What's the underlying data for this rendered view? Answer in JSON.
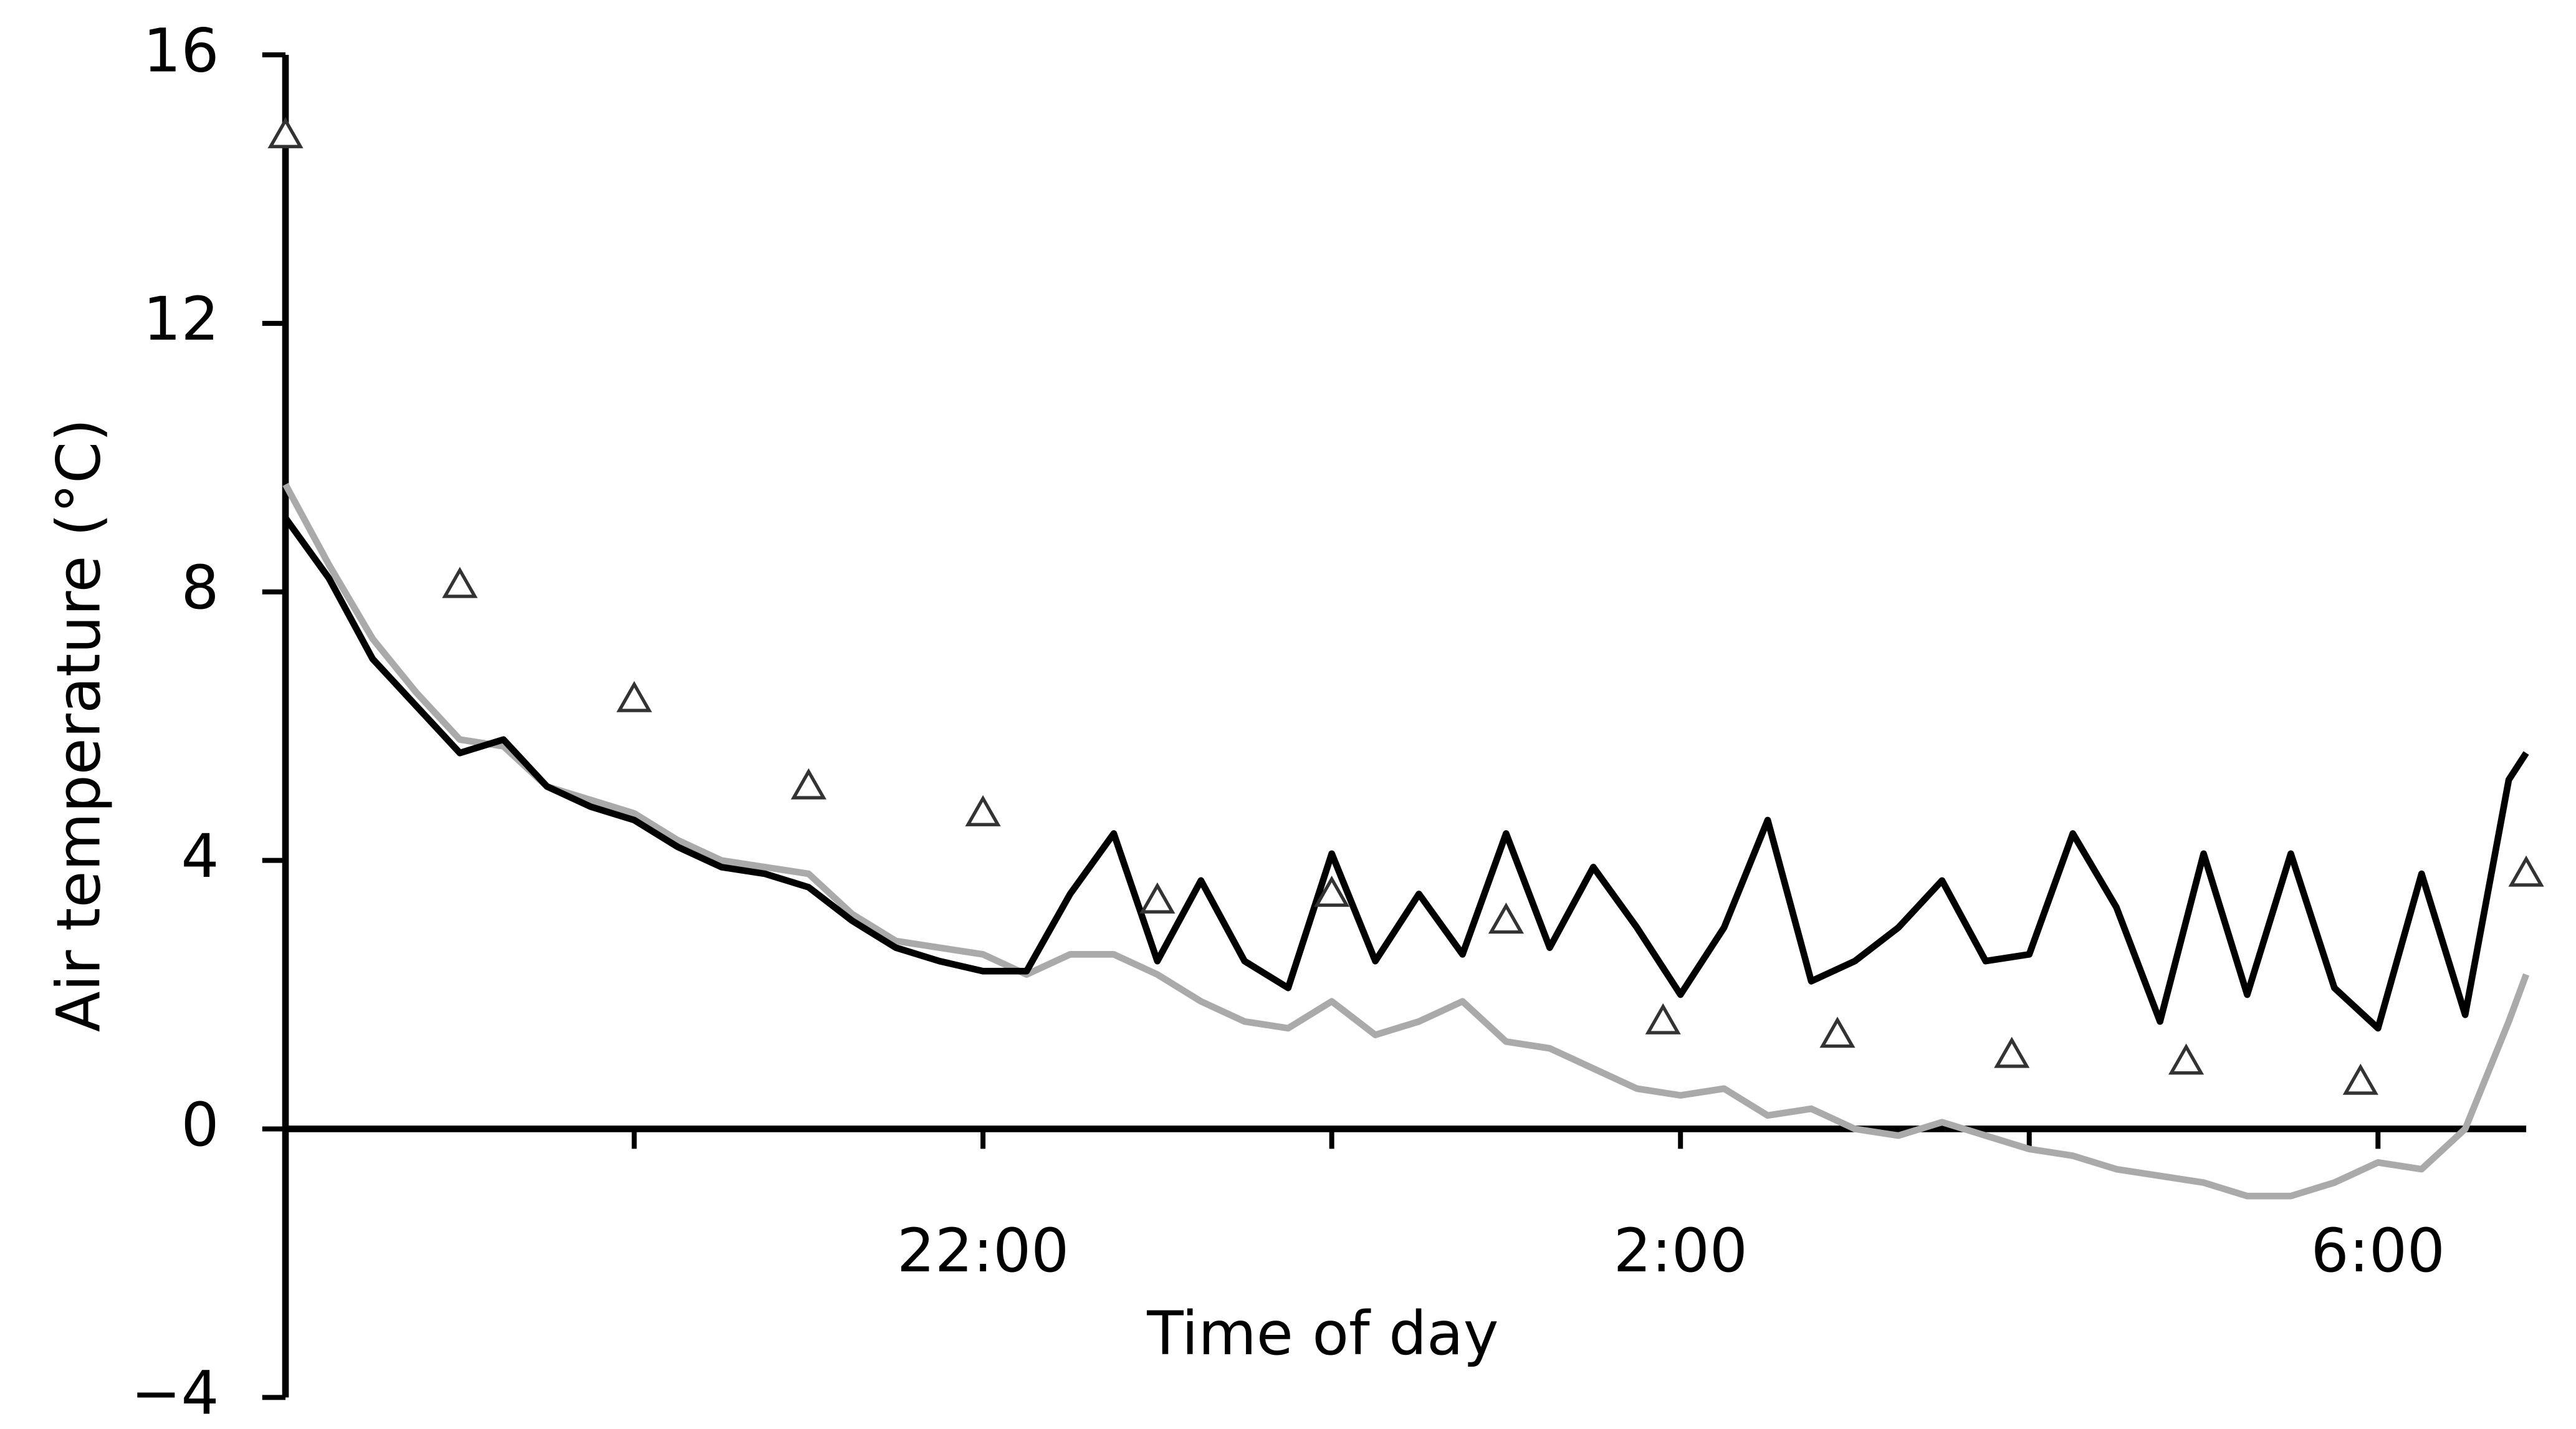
{
  "chart_data": {
    "type": "line",
    "x_label": "Time of day",
    "y_label": "Air temperature (°C)",
    "xlim": [
      18,
      30.85
    ],
    "xticks": [
      {
        "value": 22,
        "label": "22:00"
      },
      {
        "value": 26,
        "label": "2:00"
      },
      {
        "value": 30,
        "label": "6:00"
      }
    ],
    "xticks_minor": [
      20,
      24,
      28
    ],
    "ylim": [
      -4,
      16
    ],
    "yticks": [
      {
        "value": -4,
        "label": "−4"
      },
      0,
      4,
      8,
      12,
      16
    ],
    "x": [
      18,
      18.25,
      18.5,
      18.75,
      19,
      19.25,
      19.5,
      19.75,
      20,
      20.25,
      20.5,
      20.75,
      21,
      21.25,
      21.5,
      21.75,
      22,
      22.25,
      22.5,
      22.75,
      23,
      23.25,
      23.5,
      23.75,
      24,
      24.25,
      24.5,
      24.75,
      25,
      25.25,
      25.5,
      25.75,
      26,
      26.25,
      26.5,
      26.75,
      27,
      27.25,
      27.5,
      27.75,
      28,
      28.25,
      28.5,
      28.75,
      29,
      29.25,
      29.5,
      29.75,
      30,
      30.25,
      30.5,
      30.75,
      30.85
    ],
    "series": [
      {
        "color": "#aaaaaa",
        "values": [
          9.6,
          8.4,
          7.3,
          6.5,
          5.8,
          5.7,
          5.1,
          4.9,
          4.7,
          4.3,
          4.0,
          3.9,
          3.8,
          3.2,
          2.8,
          2.7,
          2.6,
          2.3,
          2.6,
          2.6,
          2.3,
          1.9,
          1.6,
          1.5,
          1.9,
          1.4,
          1.6,
          1.9,
          1.3,
          1.2,
          0.9,
          0.6,
          0.5,
          0.6,
          0.2,
          0.3,
          0.0,
          -0.1,
          0.1,
          -0.1,
          -0.3,
          -0.4,
          -0.6,
          -0.7,
          -0.8,
          -1.0,
          -1.0,
          -0.8,
          -0.5,
          -0.6,
          0.0,
          1.6,
          2.3
        ]
      },
      {
        "color": "#000000",
        "values": [
          9.1,
          8.2,
          7.0,
          6.3,
          5.6,
          5.8,
          5.1,
          4.8,
          4.6,
          4.2,
          3.9,
          3.8,
          3.6,
          3.1,
          2.7,
          2.5,
          2.35,
          2.35,
          3.5,
          4.4,
          2.5,
          3.7,
          2.5,
          2.1,
          4.1,
          2.5,
          3.5,
          2.6,
          4.4,
          2.7,
          3.9,
          3.0,
          2.0,
          3.0,
          4.6,
          2.2,
          2.5,
          3.0,
          3.7,
          2.5,
          2.6,
          4.4,
          3.3,
          1.6,
          4.1,
          2.0,
          4.1,
          2.1,
          1.5,
          3.8,
          1.7,
          5.2,
          5.6
        ]
      },
      {
        "type": "scatter",
        "color": "#333333",
        "x": [
          18,
          19,
          20,
          21,
          22,
          23,
          24,
          25,
          25.9,
          26.9,
          27.9,
          28.9,
          29.9,
          30.85
        ],
        "values": [
          14.8,
          8.1,
          6.4,
          5.1,
          4.7,
          3.4,
          3.5,
          3.1,
          1.6,
          1.4,
          1.1,
          1.0,
          0.7,
          3.8
        ]
      }
    ]
  }
}
